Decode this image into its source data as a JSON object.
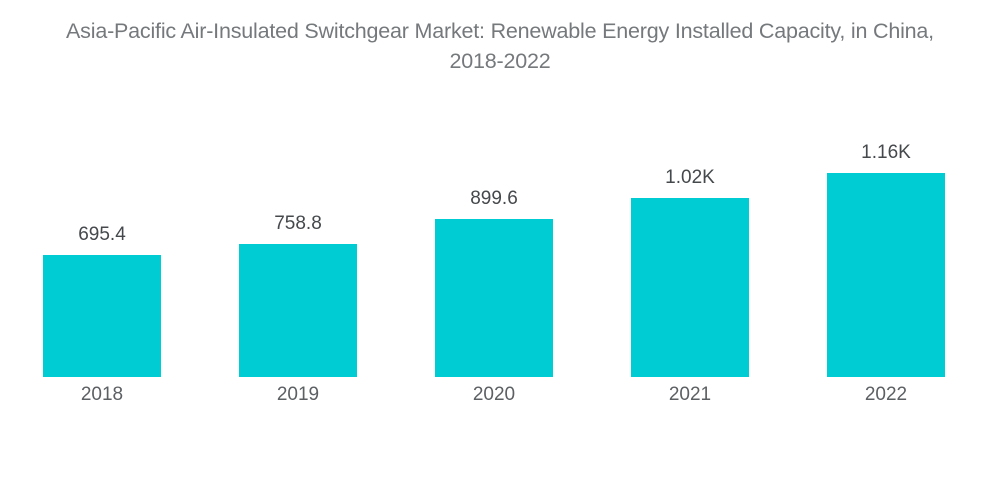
{
  "title_lines": [
    "Asia-Pacific Air-Insulated Switchgear Market: Renewable Energy Installed Capacity, in China,",
    "2018-2022"
  ],
  "chart_data": {
    "type": "bar",
    "title": "Asia-Pacific Air-Insulated Switchgear Market: Renewable Energy Installed Capacity, in China, 2018-2022",
    "categories": [
      "2018",
      "2019",
      "2020",
      "2021",
      "2022"
    ],
    "values": [
      695.4,
      758.8,
      899.6,
      1020,
      1160
    ],
    "value_labels": [
      "695.4",
      "758.8",
      "899.6",
      "1.02K",
      "1.16K"
    ],
    "xlabel": "",
    "ylabel": "",
    "ylim": [
      0,
      1160
    ],
    "grid": false,
    "legend": false,
    "axes_visible": false,
    "bar_color": "#00CCD4",
    "value_label_color": "#45494c",
    "category_label_color": "#5c6063",
    "title_color": "#75797c",
    "background_color": "#ffffff"
  }
}
